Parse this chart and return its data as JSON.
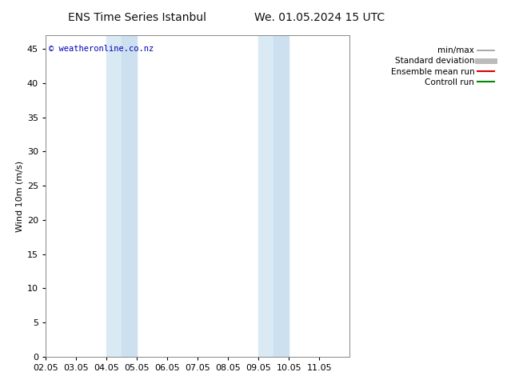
{
  "title": "ENS Time Series Istanbul",
  "title2": "We. 01.05.2024 15 UTC",
  "ylabel": "Wind 10m (m/s)",
  "watermark": "© weatheronline.co.nz",
  "watermark_color": "#0000bb",
  "background_color": "#ffffff",
  "plot_bg_color": "#ffffff",
  "xmin": 0,
  "xmax": 10,
  "ymin": 0,
  "ymax": 47,
  "yticks": [
    0,
    5,
    10,
    15,
    20,
    25,
    30,
    35,
    40,
    45
  ],
  "xtick_labels": [
    "02.05",
    "03.05",
    "04.05",
    "05.05",
    "06.05",
    "07.05",
    "08.05",
    "09.05",
    "10.05",
    "11.05"
  ],
  "xtick_positions": [
    0,
    1,
    2,
    3,
    4,
    5,
    6,
    7,
    8,
    9
  ],
  "shade_bands": [
    {
      "xstart": 2.0,
      "xend": 2.5,
      "color": "#daeaf5"
    },
    {
      "xstart": 2.5,
      "xend": 3.0,
      "color": "#cce0f0"
    },
    {
      "xstart": 7.0,
      "xend": 7.5,
      "color": "#daeaf5"
    },
    {
      "xstart": 7.5,
      "xend": 8.0,
      "color": "#cce0f0"
    }
  ],
  "legend_items": [
    {
      "label": "min/max",
      "color": "#999999",
      "lw": 1.2
    },
    {
      "label": "Standard deviation",
      "color": "#bbbbbb",
      "lw": 5
    },
    {
      "label": "Ensemble mean run",
      "color": "#dd0000",
      "lw": 1.5
    },
    {
      "label": "Controll run",
      "color": "#008800",
      "lw": 1.5
    }
  ],
  "title_fontsize": 10,
  "axis_fontsize": 8,
  "tick_fontsize": 8,
  "legend_fontsize": 7.5
}
